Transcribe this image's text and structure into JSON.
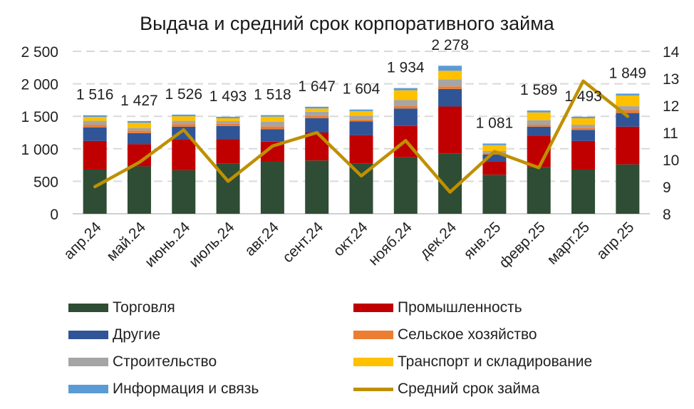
{
  "chart_data": {
    "type": "bar",
    "stacked": true,
    "title": "Выдача и средний срок корпоративного займа",
    "categories": [
      "апр.24",
      "май.24",
      "июнь.24",
      "июль.24",
      "авг.24",
      "сент.24",
      "окт.24",
      "нояб.24",
      "дек.24",
      "янв.25",
      "февр.25",
      "март.25",
      "апр.25"
    ],
    "totals_labels": [
      "1 516",
      "1 427",
      "1 526",
      "1 493",
      "1 518",
      "1 647",
      "1 604",
      "1 934",
      "2 278",
      "1 081",
      "1 589",
      "1 493",
      "1 849"
    ],
    "totals": [
      1516,
      1427,
      1526,
      1493,
      1518,
      1647,
      1604,
      1934,
      2278,
      1081,
      1589,
      1493,
      1849
    ],
    "series": [
      {
        "name": "Торговля",
        "color": "#2e4d34",
        "values": [
          680,
          730,
          670,
          770,
          800,
          820,
          770,
          870,
          930,
          600,
          720,
          680,
          760
        ]
      },
      {
        "name": "Промышленность",
        "color": "#c00000",
        "values": [
          440,
          340,
          470,
          380,
          310,
          430,
          440,
          480,
          720,
          200,
          480,
          440,
          580
        ]
      },
      {
        "name": "Другие",
        "color": "#2f5597",
        "values": [
          210,
          170,
          200,
          200,
          190,
          220,
          210,
          270,
          270,
          110,
          140,
          170,
          210
        ]
      },
      {
        "name": "Сельское хозяйство",
        "color": "#ed7d31",
        "values": [
          40,
          40,
          40,
          35,
          45,
          40,
          30,
          40,
          40,
          25,
          30,
          30,
          45
        ]
      },
      {
        "name": "Строительство",
        "color": "#a5a5a5",
        "values": [
          60,
          40,
          50,
          40,
          70,
          60,
          60,
          90,
          110,
          30,
          70,
          50,
          60
        ]
      },
      {
        "name": "Транспорт и складирование",
        "color": "#ffc000",
        "values": [
          60,
          80,
          70,
          45,
          80,
          50,
          70,
          150,
          130,
          90,
          120,
          100,
          165
        ]
      },
      {
        "name": "Информация и связь",
        "color": "#5b9bd5",
        "values": [
          26,
          27,
          26,
          23,
          23,
          27,
          24,
          34,
          78,
          26,
          29,
          23,
          29
        ]
      }
    ],
    "line_series": {
      "name": "Средний срок займа",
      "color": "#bf9000",
      "axis": "right",
      "values": [
        9.0,
        9.9,
        11.1,
        9.2,
        10.5,
        11.0,
        9.4,
        10.7,
        8.8,
        10.3,
        9.7,
        12.9,
        11.6
      ]
    },
    "y_left": {
      "min": 0,
      "max": 2500,
      "ticks": [
        0,
        500,
        1000,
        1500,
        2000,
        2500
      ],
      "tick_labels": [
        "0",
        "500",
        "1 000",
        "1 500",
        "2 000",
        "2 500"
      ]
    },
    "y_right": {
      "min": 8,
      "max": 14,
      "ticks": [
        8,
        9,
        10,
        11,
        12,
        13,
        14
      ],
      "tick_labels": [
        "8",
        "9",
        "10",
        "11",
        "12",
        "13",
        "14"
      ]
    },
    "grid": true,
    "legend_position": "bottom"
  }
}
